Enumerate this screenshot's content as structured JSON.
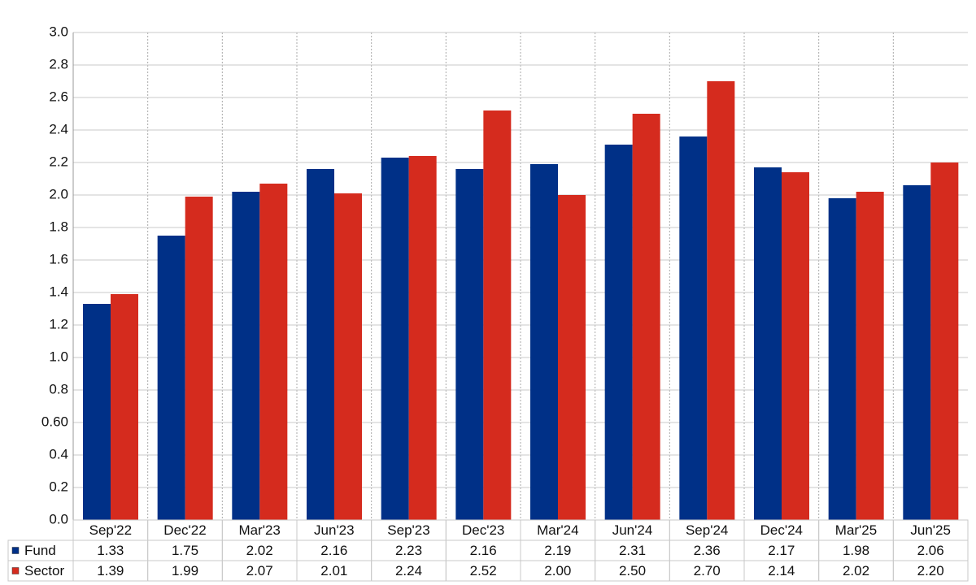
{
  "chart_data": {
    "type": "bar",
    "categories": [
      "Sep'22",
      "Dec'22",
      "Mar'23",
      "Jun'23",
      "Sep'23",
      "Dec'23",
      "Mar'24",
      "Jun'24",
      "Sep'24",
      "Dec'24",
      "Mar'25",
      "Jun'25"
    ],
    "series": [
      {
        "name": "Fund",
        "color": "#003087",
        "values": [
          1.33,
          1.75,
          2.02,
          2.16,
          2.23,
          2.16,
          2.19,
          2.31,
          2.36,
          2.17,
          1.98,
          2.06
        ],
        "value_labels": [
          "1.33",
          "1.75",
          "2.02",
          "2.16",
          "2.23",
          "2.16",
          "2.19",
          "2.31",
          "2.36",
          "2.17",
          "1.98",
          "2.06"
        ]
      },
      {
        "name": "Sector",
        "color": "#d52b1e",
        "values": [
          1.39,
          1.99,
          2.07,
          2.01,
          2.24,
          2.52,
          2.0,
          2.5,
          2.7,
          2.14,
          2.02,
          2.2
        ],
        "value_labels": [
          "1.39",
          "1.99",
          "2.07",
          "2.01",
          "2.24",
          "2.52",
          "2.00",
          "2.50",
          "2.70",
          "2.14",
          "2.02",
          "2.20"
        ]
      }
    ],
    "ylim": [
      0,
      3
    ],
    "yticks": [
      {
        "value": 0,
        "label": "0.0"
      },
      0.2,
      0.4,
      {
        "value": 0.6,
        "label": "0.60"
      },
      0.8,
      {
        "value": 1,
        "label": "1.0"
      },
      1.2,
      1.4,
      1.6,
      1.8,
      {
        "value": 2,
        "label": "2.0"
      },
      2.2,
      2.4,
      2.6,
      2.8,
      {
        "value": 3,
        "label": "3.0"
      }
    ],
    "grid": true
  }
}
